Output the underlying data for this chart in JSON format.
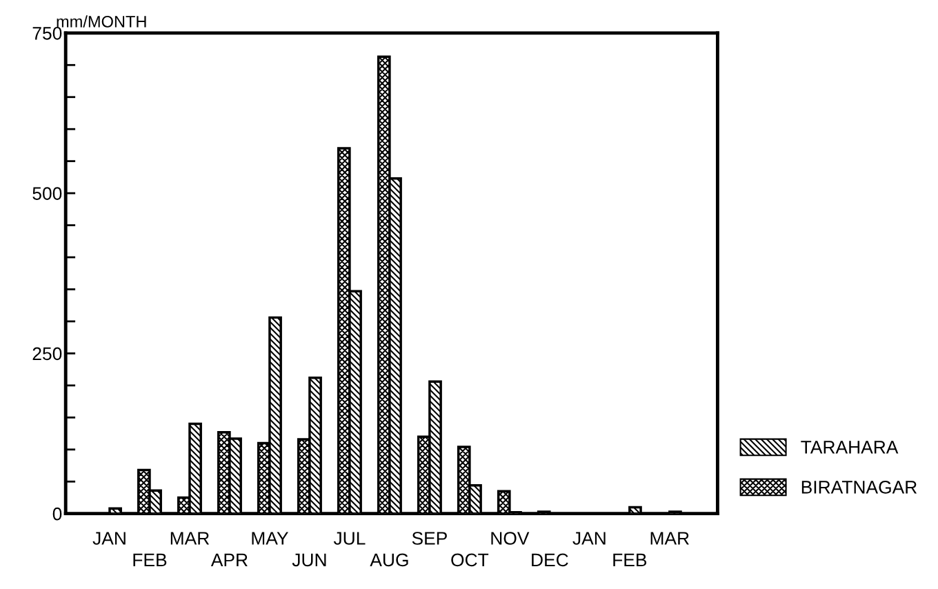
{
  "chart_data": {
    "type": "bar",
    "ylabel": "mm/MONTH",
    "categories": [
      "JAN",
      "FEB",
      "MAR",
      "APR",
      "MAY",
      "JUN",
      "JUL",
      "AUG",
      "SEP",
      "OCT",
      "NOV",
      "DEC",
      "JAN",
      "FEB",
      "MAR"
    ],
    "series": [
      {
        "name": "BIRATNAGAR",
        "color": "#000000",
        "values": [
          null,
          68,
          25,
          127,
          110,
          116,
          570,
          713,
          120,
          104,
          35,
          3,
          null,
          null,
          null
        ]
      },
      {
        "name": "TARAHARA",
        "color": "#000000",
        "values": [
          8,
          36,
          140,
          117,
          306,
          212,
          347,
          523,
          206,
          44,
          2,
          null,
          null,
          10,
          3
        ]
      }
    ],
    "ylim": [
      0,
      750
    ],
    "yticks": [
      0,
      {
        "value": 50,
        "label": null
      },
      {
        "value": 100,
        "label": null
      },
      {
        "value": 150,
        "label": null
      },
      {
        "value": 200,
        "label": null
      },
      250,
      {
        "value": 300,
        "label": null
      },
      {
        "value": 350,
        "label": null
      },
      {
        "value": 400,
        "label": null
      },
      {
        "value": 450,
        "label": null
      },
      500,
      {
        "value": 550,
        "label": null
      },
      {
        "value": 600,
        "label": null
      },
      {
        "value": 650,
        "label": null
      },
      {
        "value": 700,
        "label": null
      },
      750
    ],
    "grid": false,
    "legend": "right"
  }
}
